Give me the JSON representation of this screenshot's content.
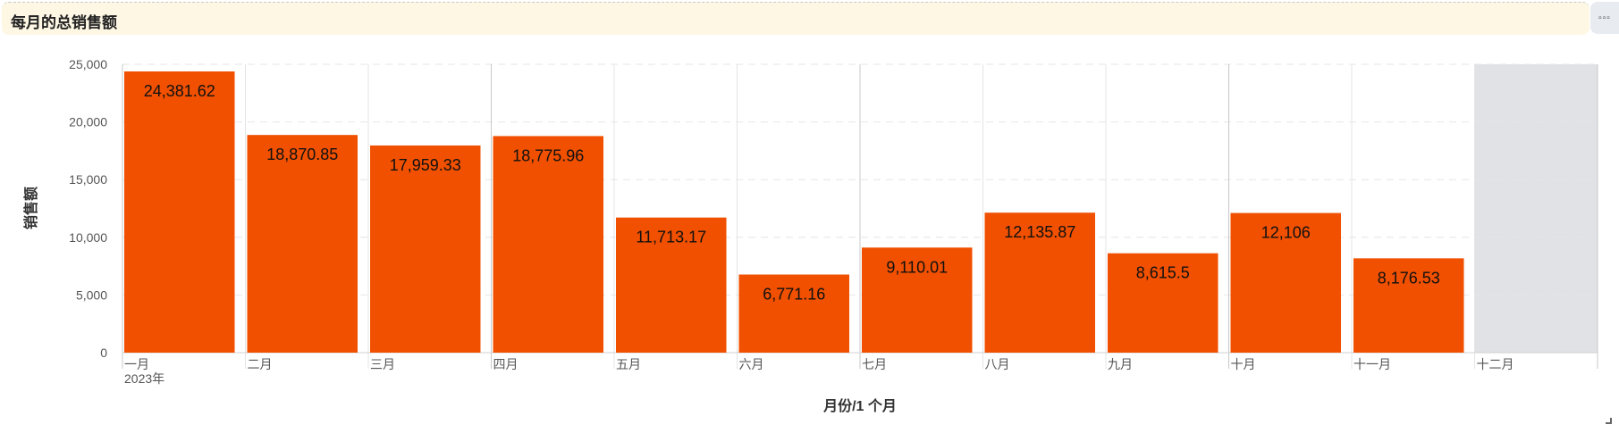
{
  "panel": {
    "title": "每月的总销售额",
    "menu_icon": "more-icon"
  },
  "colors": {
    "bar": "#f05000",
    "empty_band": "#e0e2e6",
    "grid": "#e6e6e6",
    "header_bg": "#fdf7e4"
  },
  "chart_data": {
    "type": "bar",
    "title": "每月的总销售额",
    "xlabel": "月份/1 个月",
    "ylabel": "销售额",
    "year_label": "2023年",
    "categories": [
      "一月",
      "二月",
      "三月",
      "四月",
      "五月",
      "六月",
      "七月",
      "八月",
      "九月",
      "十月",
      "十一月",
      "十二月"
    ],
    "values": [
      24381.62,
      18870.85,
      17959.33,
      18775.96,
      11713.17,
      6771.16,
      9110.01,
      12135.87,
      8615.5,
      12106,
      8176.53,
      null
    ],
    "value_labels": [
      "24,381.62",
      "18,870.85",
      "17,959.33",
      "18,775.96",
      "11,713.17",
      "6,771.16",
      "9,110.01",
      "12,135.87",
      "8,615.5",
      "12,106",
      "8,176.53",
      ""
    ],
    "ylim": [
      0,
      25000
    ],
    "yticks": [
      0,
      5000,
      10000,
      15000,
      20000,
      25000
    ],
    "ytick_labels": [
      "0",
      "5,000",
      "10,000",
      "15,000",
      "20,000",
      "25,000"
    ],
    "grid": true,
    "legend": false
  }
}
